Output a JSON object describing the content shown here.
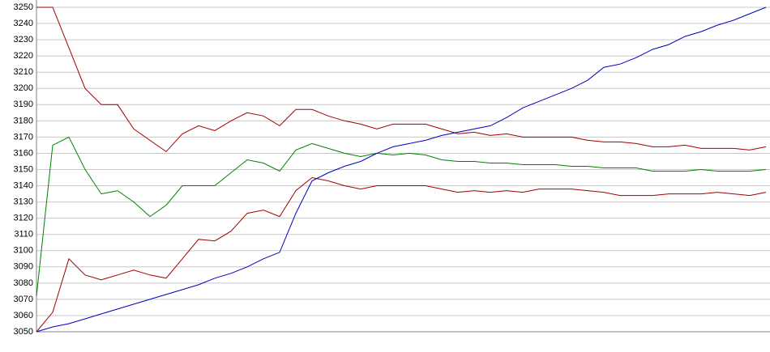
{
  "chart_data": {
    "type": "line",
    "ylim": [
      3050,
      3250
    ],
    "yticks": [
      3050,
      3060,
      3070,
      3080,
      3090,
      3100,
      3110,
      3120,
      3130,
      3140,
      3150,
      3160,
      3170,
      3180,
      3190,
      3200,
      3210,
      3220,
      3230,
      3240,
      3250
    ],
    "grid": true,
    "series": [
      {
        "color": "#a00000",
        "values": [
          3250,
          3250,
          3225,
          3200,
          3190,
          3190,
          3175,
          3168,
          3161,
          3172,
          3177,
          3174,
          3180,
          3185,
          3183,
          3177,
          3187,
          3187,
          3183,
          3180,
          3178,
          3175,
          3178,
          3178,
          3178,
          3175,
          3172,
          3173,
          3171,
          3172,
          3170,
          3170,
          3170,
          3170,
          3168,
          3167,
          3167,
          3166,
          3164,
          3164,
          3165,
          3163,
          3163,
          3163,
          3162,
          3164
        ]
      },
      {
        "color": "#008000",
        "values": [
          3072,
          3165,
          3170,
          3150,
          3135,
          3137,
          3130,
          3121,
          3128,
          3140,
          3140,
          3140,
          3148,
          3156,
          3154,
          3149,
          3162,
          3166,
          3163,
          3160,
          3158,
          3160,
          3159,
          3160,
          3159,
          3156,
          3155,
          3155,
          3154,
          3154,
          3153,
          3153,
          3153,
          3152,
          3152,
          3151,
          3151,
          3151,
          3149,
          3149,
          3149,
          3150,
          3149,
          3149,
          3149,
          3150
        ]
      },
      {
        "color": "#a00000",
        "values": [
          3050,
          3062,
          3095,
          3085,
          3082,
          3085,
          3088,
          3085,
          3083,
          3095,
          3107,
          3106,
          3112,
          3123,
          3125,
          3121,
          3137,
          3145,
          3143,
          3140,
          3138,
          3140,
          3140,
          3140,
          3140,
          3138,
          3136,
          3137,
          3136,
          3137,
          3136,
          3138,
          3138,
          3138,
          3137,
          3136,
          3134,
          3134,
          3134,
          3135,
          3135,
          3135,
          3136,
          3135,
          3134,
          3136
        ]
      },
      {
        "color": "#0000c0",
        "values": [
          3050,
          3053,
          3055,
          3058,
          3061,
          3064,
          3067,
          3070,
          3073,
          3076,
          3079,
          3083,
          3086,
          3090,
          3095,
          3099,
          3123,
          3143,
          3148,
          3152,
          3155,
          3160,
          3164,
          3166,
          3168,
          3171,
          3173,
          3175,
          3177,
          3182,
          3188,
          3192,
          3196,
          3200,
          3205,
          3213,
          3215,
          3219,
          3224,
          3227,
          3232,
          3235,
          3239,
          3242,
          3246,
          3250
        ]
      }
    ]
  }
}
